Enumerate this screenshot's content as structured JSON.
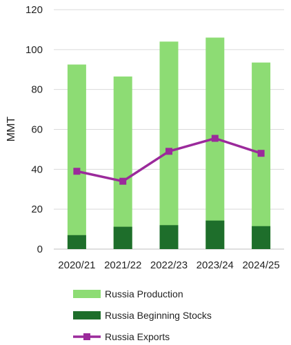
{
  "chart_data": {
    "type": "bar",
    "categories": [
      "2020/21",
      "2021/22",
      "2022/23",
      "2023/24",
      "2024/25"
    ],
    "ylabel": "MMT",
    "xlabel": "",
    "ylim": [
      0,
      120
    ],
    "yticks": [
      0,
      20,
      40,
      60,
      80,
      100,
      120
    ],
    "grid": true,
    "legend": "bottom",
    "series": [
      {
        "name": "Russia Production",
        "kind": "stacked-bar",
        "color": "#8ddc74",
        "values": [
          92.5,
          86.5,
          104,
          106,
          93.5
        ]
      },
      {
        "name": "Russia Beginning Stocks",
        "kind": "stacked-bar",
        "color": "#1e6e2b",
        "values": [
          7,
          11.2,
          12,
          14.3,
          11.5
        ]
      },
      {
        "name": "Russia Exports",
        "kind": "line",
        "marker": "square",
        "color": "#9b2a9b",
        "values": [
          39,
          34,
          49,
          55.5,
          48
        ]
      }
    ]
  }
}
